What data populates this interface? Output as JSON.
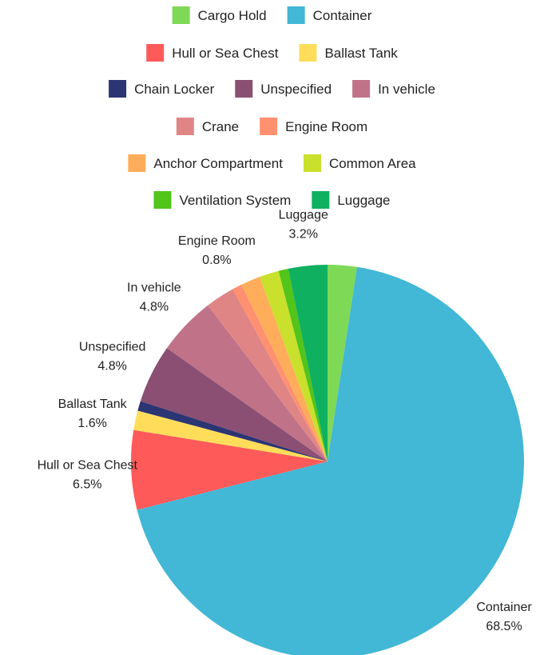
{
  "chart_data": {
    "type": "pie",
    "title": "",
    "legend_position": "top",
    "slices": [
      {
        "label": "Cargo Hold",
        "value": 2.4,
        "color": "#7ed957"
      },
      {
        "label": "Container",
        "value": 68.5,
        "value_label": "68.5%",
        "color": "#42b7d6"
      },
      {
        "label": "Hull or Sea Chest",
        "value": 6.5,
        "value_label": "6.5%",
        "color": "#ff5a5a"
      },
      {
        "label": "Ballast Tank",
        "value": 1.6,
        "value_label": "1.6%",
        "color": "#ffdd5a"
      },
      {
        "label": "Chain Locker",
        "value": 0.8,
        "color": "#2c3573"
      },
      {
        "label": "Unspecified",
        "value": 4.8,
        "value_label": "4.8%",
        "color": "#8a4f73"
      },
      {
        "label": "In vehicle",
        "value": 4.8,
        "value_label": "4.8%",
        "color": "#c07289"
      },
      {
        "label": "Crane",
        "value": 2.4,
        "color": "#e08585"
      },
      {
        "label": "Engine Room",
        "value": 0.8,
        "value_label": "0.8%",
        "color": "#ff9070"
      },
      {
        "label": "Anchor Compartment",
        "value": 1.6,
        "color": "#ffad5a"
      },
      {
        "label": "Common Area",
        "value": 1.6,
        "color": "#c9e02d"
      },
      {
        "label": "Ventilation System",
        "value": 0.8,
        "color": "#52c41a"
      },
      {
        "label": "Luggage",
        "value": 3.2,
        "value_label": "3.2%",
        "color": "#0fb060"
      }
    ],
    "legend_rows": [
      [
        "Cargo Hold",
        "Container"
      ],
      [
        "Hull or Sea Chest",
        "Ballast Tank"
      ],
      [
        "Chain Locker",
        "Unspecified",
        "In vehicle"
      ],
      [
        "Crane",
        "Engine Room"
      ],
      [
        "Anchor Compartment",
        "Common Area"
      ],
      [
        "Ventilation System",
        "Luggage"
      ]
    ]
  }
}
